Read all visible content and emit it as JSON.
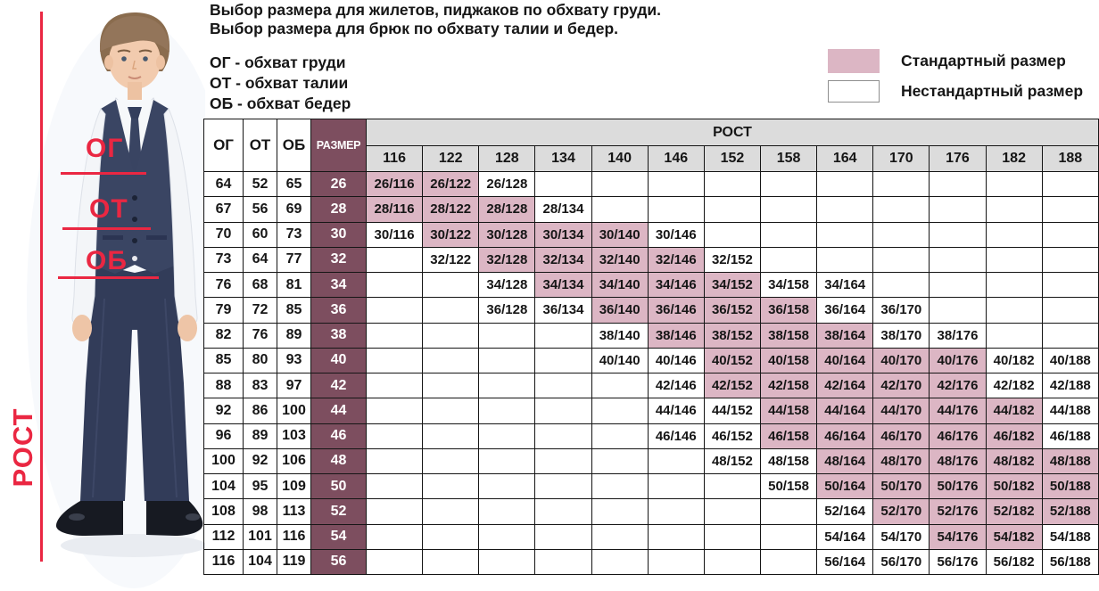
{
  "intro": {
    "line1": "Выбор размера для жилетов, пиджаков по обхвату груди.",
    "line2": "Выбор размера для брюк по обхвату талии и бедер."
  },
  "abbreviations": {
    "og": "ОГ - обхват груди",
    "ot": "ОТ - обхват талии",
    "ob": "ОБ - обхват бедер"
  },
  "legend": {
    "standard_label": "Стандартный размер",
    "nonstandard_label": "Нестандартный размер"
  },
  "photo_annotations": {
    "chest": "ОГ",
    "waist": "ОТ",
    "hips": "ОБ",
    "height": "РОСТ"
  },
  "colors": {
    "standard_pink": "#dcb6c4",
    "size_maroon": "#7d4e5f",
    "header_gray": "#dcdcdc",
    "annotation_red": "#ea2742"
  },
  "chart_data": {
    "type": "table",
    "corner_headers": [
      "ОГ",
      "ОТ",
      "ОБ",
      "РАЗМЕР"
    ],
    "group_header": "РОСТ",
    "heights": [
      "116",
      "122",
      "128",
      "134",
      "140",
      "146",
      "152",
      "158",
      "164",
      "170",
      "176",
      "182",
      "188"
    ],
    "rows": [
      {
        "og": "64",
        "ot": "52",
        "ob": "65",
        "size": "26",
        "cells": {
          "116": {
            "label": "26/116",
            "standard": true
          },
          "122": {
            "label": "26/122",
            "standard": true
          },
          "128": {
            "label": "26/128",
            "standard": false
          }
        }
      },
      {
        "og": "67",
        "ot": "56",
        "ob": "69",
        "size": "28",
        "cells": {
          "116": {
            "label": "28/116",
            "standard": true
          },
          "122": {
            "label": "28/122",
            "standard": true
          },
          "128": {
            "label": "28/128",
            "standard": true
          },
          "134": {
            "label": "28/134",
            "standard": false
          }
        }
      },
      {
        "og": "70",
        "ot": "60",
        "ob": "73",
        "size": "30",
        "cells": {
          "116": {
            "label": "30/116",
            "standard": false
          },
          "122": {
            "label": "30/122",
            "standard": true
          },
          "128": {
            "label": "30/128",
            "standard": true
          },
          "134": {
            "label": "30/134",
            "standard": true
          },
          "140": {
            "label": "30/140",
            "standard": true
          },
          "146": {
            "label": "30/146",
            "standard": false
          }
        }
      },
      {
        "og": "73",
        "ot": "64",
        "ob": "77",
        "size": "32",
        "cells": {
          "122": {
            "label": "32/122",
            "standard": false
          },
          "128": {
            "label": "32/128",
            "standard": true
          },
          "134": {
            "label": "32/134",
            "standard": true
          },
          "140": {
            "label": "32/140",
            "standard": true
          },
          "146": {
            "label": "32/146",
            "standard": true
          },
          "152": {
            "label": "32/152",
            "standard": false
          }
        }
      },
      {
        "og": "76",
        "ot": "68",
        "ob": "81",
        "size": "34",
        "cells": {
          "128": {
            "label": "34/128",
            "standard": false
          },
          "134": {
            "label": "34/134",
            "standard": true
          },
          "140": {
            "label": "34/140",
            "standard": true
          },
          "146": {
            "label": "34/146",
            "standard": true
          },
          "152": {
            "label": "34/152",
            "standard": true
          },
          "158": {
            "label": "34/158",
            "standard": false
          },
          "164": {
            "label": "34/164",
            "standard": false
          }
        }
      },
      {
        "og": "79",
        "ot": "72",
        "ob": "85",
        "size": "36",
        "cells": {
          "128": {
            "label": "36/128",
            "standard": false
          },
          "134": {
            "label": "36/134",
            "standard": false
          },
          "140": {
            "label": "36/140",
            "standard": true
          },
          "146": {
            "label": "36/146",
            "standard": true
          },
          "152": {
            "label": "36/152",
            "standard": true
          },
          "158": {
            "label": "36/158",
            "standard": true
          },
          "164": {
            "label": "36/164",
            "standard": false
          },
          "170": {
            "label": "36/170",
            "standard": false
          }
        }
      },
      {
        "og": "82",
        "ot": "76",
        "ob": "89",
        "size": "38",
        "cells": {
          "140": {
            "label": "38/140",
            "standard": false
          },
          "146": {
            "label": "38/146",
            "standard": true
          },
          "152": {
            "label": "38/152",
            "standard": true
          },
          "158": {
            "label": "38/158",
            "standard": true
          },
          "164": {
            "label": "38/164",
            "standard": true
          },
          "170": {
            "label": "38/170",
            "standard": false
          },
          "176": {
            "label": "38/176",
            "standard": false
          }
        }
      },
      {
        "og": "85",
        "ot": "80",
        "ob": "93",
        "size": "40",
        "cells": {
          "140": {
            "label": "40/140",
            "standard": false
          },
          "146": {
            "label": "40/146",
            "standard": false
          },
          "152": {
            "label": "40/152",
            "standard": true
          },
          "158": {
            "label": "40/158",
            "standard": true
          },
          "164": {
            "label": "40/164",
            "standard": true
          },
          "170": {
            "label": "40/170",
            "standard": true
          },
          "176": {
            "label": "40/176",
            "standard": true
          },
          "182": {
            "label": "40/182",
            "standard": false
          },
          "188": {
            "label": "40/188",
            "standard": false
          }
        }
      },
      {
        "og": "88",
        "ot": "83",
        "ob": "97",
        "size": "42",
        "cells": {
          "146": {
            "label": "42/146",
            "standard": false
          },
          "152": {
            "label": "42/152",
            "standard": true
          },
          "158": {
            "label": "42/158",
            "standard": true
          },
          "164": {
            "label": "42/164",
            "standard": true
          },
          "170": {
            "label": "42/170",
            "standard": true
          },
          "176": {
            "label": "42/176",
            "standard": true
          },
          "182": {
            "label": "42/182",
            "standard": false
          },
          "188": {
            "label": "42/188",
            "standard": false
          }
        }
      },
      {
        "og": "92",
        "ot": "86",
        "ob": "100",
        "size": "44",
        "cells": {
          "146": {
            "label": "44/146",
            "standard": false
          },
          "152": {
            "label": "44/152",
            "standard": false
          },
          "158": {
            "label": "44/158",
            "standard": true
          },
          "164": {
            "label": "44/164",
            "standard": true
          },
          "170": {
            "label": "44/170",
            "standard": true
          },
          "176": {
            "label": "44/176",
            "standard": true
          },
          "182": {
            "label": "44/182",
            "standard": true
          },
          "188": {
            "label": "44/188",
            "standard": false
          }
        }
      },
      {
        "og": "96",
        "ot": "89",
        "ob": "103",
        "size": "46",
        "cells": {
          "146": {
            "label": "46/146",
            "standard": false
          },
          "152": {
            "label": "46/152",
            "standard": false
          },
          "158": {
            "label": "46/158",
            "standard": true
          },
          "164": {
            "label": "46/164",
            "standard": true
          },
          "170": {
            "label": "46/170",
            "standard": true
          },
          "176": {
            "label": "46/176",
            "standard": true
          },
          "182": {
            "label": "46/182",
            "standard": true
          },
          "188": {
            "label": "46/188",
            "standard": false
          }
        }
      },
      {
        "og": "100",
        "ot": "92",
        "ob": "106",
        "size": "48",
        "cells": {
          "152": {
            "label": "48/152",
            "standard": false
          },
          "158": {
            "label": "48/158",
            "standard": false
          },
          "164": {
            "label": "48/164",
            "standard": true
          },
          "170": {
            "label": "48/170",
            "standard": true
          },
          "176": {
            "label": "48/176",
            "standard": true
          },
          "182": {
            "label": "48/182",
            "standard": true
          },
          "188": {
            "label": "48/188",
            "standard": true
          }
        }
      },
      {
        "og": "104",
        "ot": "95",
        "ob": "109",
        "size": "50",
        "cells": {
          "158": {
            "label": "50/158",
            "standard": false
          },
          "164": {
            "label": "50/164",
            "standard": true
          },
          "170": {
            "label": "50/170",
            "standard": true
          },
          "176": {
            "label": "50/176",
            "standard": true
          },
          "182": {
            "label": "50/182",
            "standard": true
          },
          "188": {
            "label": "50/188",
            "standard": true
          }
        }
      },
      {
        "og": "108",
        "ot": "98",
        "ob": "113",
        "size": "52",
        "cells": {
          "164": {
            "label": "52/164",
            "standard": false
          },
          "170": {
            "label": "52/170",
            "standard": true
          },
          "176": {
            "label": "52/176",
            "standard": true
          },
          "182": {
            "label": "52/182",
            "standard": true
          },
          "188": {
            "label": "52/188",
            "standard": true
          }
        }
      },
      {
        "og": "112",
        "ot": "101",
        "ob": "116",
        "size": "54",
        "cells": {
          "164": {
            "label": "54/164",
            "standard": false
          },
          "170": {
            "label": "54/170",
            "standard": false
          },
          "176": {
            "label": "54/176",
            "standard": true
          },
          "182": {
            "label": "54/182",
            "standard": true
          },
          "188": {
            "label": "54/188",
            "standard": false
          }
        }
      },
      {
        "og": "116",
        "ot": "104",
        "ob": "119",
        "size": "56",
        "cells": {
          "164": {
            "label": "56/164",
            "standard": false
          },
          "170": {
            "label": "56/170",
            "standard": false
          },
          "176": {
            "label": "56/176",
            "standard": false
          },
          "182": {
            "label": "56/182",
            "standard": false
          },
          "188": {
            "label": "56/188",
            "standard": false
          }
        }
      }
    ]
  }
}
